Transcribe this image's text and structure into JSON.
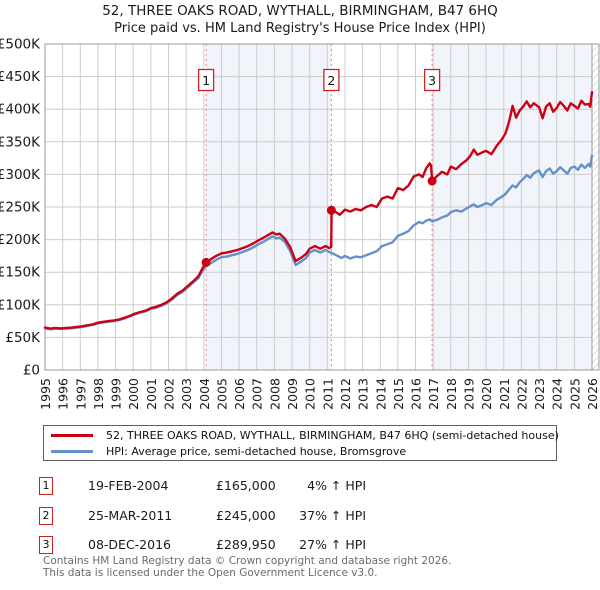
{
  "header": {
    "title": "52, THREE OAKS ROAD, WYTHALL, BIRMINGHAM, B47 6HQ",
    "subtitle": "Price paid vs. HM Land Registry's House Price Index (HPI)"
  },
  "colors": {
    "property_line": "#cc0011",
    "hpi_line": "#6491c8",
    "shade": "#f1f4fb",
    "grid": "#cccccc",
    "plot_border": "#999999",
    "sale_dashed": "#ef8585",
    "marker_box_border": "#cc2222",
    "text": "#1a1a1a",
    "muted": "#6b6b6b"
  },
  "chart_data": {
    "type": "line",
    "title": "52, THREE OAKS ROAD, WYTHALL, BIRMINGHAM, B47 6HQ",
    "subtitle": "Price paid vs. HM Land Registry's House Price Index (HPI)",
    "x_axis": {
      "min": 1995,
      "max": 2026,
      "tick_years": [
        1995,
        1996,
        1997,
        1998,
        1999,
        2000,
        2001,
        2002,
        2003,
        2004,
        2005,
        2006,
        2007,
        2008,
        2009,
        2010,
        2011,
        2012,
        2013,
        2014,
        2015,
        2016,
        2017,
        2018,
        2019,
        2020,
        2021,
        2022,
        2023,
        2024,
        2025,
        2026
      ]
    },
    "y_axis": {
      "min": 0,
      "max": 500,
      "unit": "GBP thousands",
      "tick_values": [
        0,
        50,
        100,
        150,
        200,
        250,
        300,
        350,
        400,
        450,
        500
      ],
      "tick_labels": [
        "£0",
        "£50K",
        "£100K",
        "£150K",
        "£200K",
        "£250K",
        "£300K",
        "£350K",
        "£400K",
        "£450K",
        "£500K"
      ]
    },
    "grid": true,
    "legend_position": "below",
    "shaded_regions": [
      [
        2004.13,
        2011.23
      ],
      [
        2016.94,
        2026
      ]
    ],
    "future_hatch": true,
    "series": [
      {
        "name": "52, THREE OAKS ROAD, WYTHALL, BIRMINGHAM, B47 6HQ (semi-detached house)",
        "color": "#cc0011",
        "points": [
          [
            1995.0,
            65
          ],
          [
            1995.3,
            63.5
          ],
          [
            1995.6,
            64.5
          ],
          [
            1995.9,
            63.8
          ],
          [
            1996.2,
            64.5
          ],
          [
            1996.5,
            65
          ],
          [
            1996.8,
            66
          ],
          [
            1997.1,
            67
          ],
          [
            1997.4,
            68.5
          ],
          [
            1997.7,
            70
          ],
          [
            1998.0,
            72.5
          ],
          [
            1998.3,
            74
          ],
          [
            1998.6,
            75
          ],
          [
            1998.9,
            76
          ],
          [
            1999.2,
            77.5
          ],
          [
            1999.5,
            80
          ],
          [
            1999.8,
            83
          ],
          [
            2000.1,
            86.5
          ],
          [
            2000.4,
            89
          ],
          [
            2000.7,
            91
          ],
          [
            2001.0,
            95
          ],
          [
            2001.3,
            97
          ],
          [
            2001.6,
            100
          ],
          [
            2001.9,
            104
          ],
          [
            2002.2,
            110
          ],
          [
            2002.5,
            117
          ],
          [
            2002.8,
            122
          ],
          [
            2003.1,
            129
          ],
          [
            2003.4,
            136
          ],
          [
            2003.7,
            144
          ],
          [
            2003.95,
            157
          ],
          [
            2004.13,
            165
          ],
          [
            2004.4,
            170
          ],
          [
            2004.7,
            175
          ],
          [
            2005.0,
            179
          ],
          [
            2005.3,
            180
          ],
          [
            2005.6,
            182
          ],
          [
            2005.9,
            184
          ],
          [
            2006.2,
            187
          ],
          [
            2006.5,
            190
          ],
          [
            2006.8,
            194
          ],
          [
            2007.1,
            199
          ],
          [
            2007.4,
            203
          ],
          [
            2007.7,
            208
          ],
          [
            2007.9,
            211
          ],
          [
            2008.1,
            208
          ],
          [
            2008.3,
            209
          ],
          [
            2008.6,
            201
          ],
          [
            2008.9,
            188
          ],
          [
            2009.2,
            167
          ],
          [
            2009.5,
            172
          ],
          [
            2009.8,
            178
          ],
          [
            2010.0,
            186
          ],
          [
            2010.3,
            190
          ],
          [
            2010.6,
            186
          ],
          [
            2010.9,
            190
          ],
          [
            2011.1,
            187
          ],
          [
            2011.22,
            189
          ],
          [
            2011.24,
            245
          ],
          [
            2011.5,
            242
          ],
          [
            2011.7,
            238
          ],
          [
            2012.0,
            246
          ],
          [
            2012.3,
            243
          ],
          [
            2012.6,
            247
          ],
          [
            2012.9,
            245
          ],
          [
            2013.2,
            250
          ],
          [
            2013.5,
            253
          ],
          [
            2013.8,
            250
          ],
          [
            2014.1,
            263
          ],
          [
            2014.4,
            266
          ],
          [
            2014.7,
            263
          ],
          [
            2015.0,
            279
          ],
          [
            2015.3,
            276
          ],
          [
            2015.6,
            283
          ],
          [
            2015.9,
            297
          ],
          [
            2016.2,
            300
          ],
          [
            2016.4,
            296
          ],
          [
            2016.6,
            309
          ],
          [
            2016.8,
            317
          ],
          [
            2016.88,
            313
          ],
          [
            2016.94,
            290
          ],
          [
            2017.2,
            297
          ],
          [
            2017.5,
            304
          ],
          [
            2017.8,
            300
          ],
          [
            2018.0,
            312
          ],
          [
            2018.3,
            308
          ],
          [
            2018.6,
            316
          ],
          [
            2018.9,
            322
          ],
          [
            2019.1,
            328
          ],
          [
            2019.3,
            338
          ],
          [
            2019.5,
            330
          ],
          [
            2019.8,
            334
          ],
          [
            2020.0,
            336
          ],
          [
            2020.3,
            331
          ],
          [
            2020.6,
            344
          ],
          [
            2020.9,
            354
          ],
          [
            2021.1,
            363
          ],
          [
            2021.3,
            381
          ],
          [
            2021.5,
            405
          ],
          [
            2021.7,
            387
          ],
          [
            2021.9,
            398
          ],
          [
            2022.1,
            404
          ],
          [
            2022.3,
            412
          ],
          [
            2022.5,
            403
          ],
          [
            2022.7,
            409
          ],
          [
            2023.0,
            403
          ],
          [
            2023.2,
            386
          ],
          [
            2023.4,
            404
          ],
          [
            2023.6,
            409
          ],
          [
            2023.8,
            396
          ],
          [
            2024.0,
            402
          ],
          [
            2024.2,
            411
          ],
          [
            2024.4,
            405
          ],
          [
            2024.6,
            398
          ],
          [
            2024.8,
            409
          ],
          [
            2025.0,
            405
          ],
          [
            2025.2,
            401
          ],
          [
            2025.4,
            413
          ],
          [
            2025.6,
            407
          ],
          [
            2025.8,
            408
          ],
          [
            2025.9,
            404
          ],
          [
            2026.0,
            426
          ]
        ]
      },
      {
        "name": "HPI: Average price, semi-detached house, Bromsgrove",
        "color": "#6491c8",
        "points": [
          [
            1995.0,
            64
          ],
          [
            1995.3,
            62.5
          ],
          [
            1995.6,
            63.5
          ],
          [
            1995.9,
            63
          ],
          [
            1996.2,
            63.5
          ],
          [
            1996.5,
            64
          ],
          [
            1996.8,
            65
          ],
          [
            1997.1,
            66
          ],
          [
            1997.4,
            67.5
          ],
          [
            1997.7,
            69
          ],
          [
            1998.0,
            71.5
          ],
          [
            1998.3,
            73
          ],
          [
            1998.6,
            74
          ],
          [
            1998.9,
            75
          ],
          [
            1999.2,
            76.5
          ],
          [
            1999.5,
            79
          ],
          [
            1999.8,
            82
          ],
          [
            2000.1,
            85.5
          ],
          [
            2000.4,
            88
          ],
          [
            2000.7,
            90
          ],
          [
            2001.0,
            93.5
          ],
          [
            2001.3,
            95.5
          ],
          [
            2001.6,
            98.5
          ],
          [
            2001.9,
            102.5
          ],
          [
            2002.2,
            108
          ],
          [
            2002.5,
            115
          ],
          [
            2002.8,
            120
          ],
          [
            2003.1,
            127
          ],
          [
            2003.4,
            134
          ],
          [
            2003.7,
            141
          ],
          [
            2003.95,
            153
          ],
          [
            2004.13,
            159
          ],
          [
            2004.4,
            164
          ],
          [
            2004.7,
            169
          ],
          [
            2005.0,
            173
          ],
          [
            2005.3,
            174
          ],
          [
            2005.6,
            176
          ],
          [
            2005.9,
            178
          ],
          [
            2006.2,
            181
          ],
          [
            2006.5,
            184
          ],
          [
            2006.8,
            188
          ],
          [
            2007.1,
            193
          ],
          [
            2007.4,
            197
          ],
          [
            2007.7,
            202
          ],
          [
            2007.9,
            205
          ],
          [
            2008.1,
            202
          ],
          [
            2008.3,
            203
          ],
          [
            2008.6,
            196
          ],
          [
            2008.9,
            182
          ],
          [
            2009.2,
            161
          ],
          [
            2009.5,
            166
          ],
          [
            2009.8,
            172
          ],
          [
            2010.0,
            180
          ],
          [
            2010.3,
            184
          ],
          [
            2010.6,
            180
          ],
          [
            2010.9,
            184
          ],
          [
            2011.1,
            181
          ],
          [
            2011.3,
            179
          ],
          [
            2011.5,
            176
          ],
          [
            2011.8,
            172
          ],
          [
            2012.0,
            175
          ],
          [
            2012.3,
            171
          ],
          [
            2012.6,
            174
          ],
          [
            2012.9,
            173
          ],
          [
            2013.2,
            176
          ],
          [
            2013.5,
            179
          ],
          [
            2013.8,
            182
          ],
          [
            2014.1,
            190
          ],
          [
            2014.4,
            193
          ],
          [
            2014.7,
            196
          ],
          [
            2015.0,
            206
          ],
          [
            2015.3,
            209
          ],
          [
            2015.6,
            213
          ],
          [
            2015.9,
            222
          ],
          [
            2016.2,
            227
          ],
          [
            2016.4,
            225
          ],
          [
            2016.6,
            229
          ],
          [
            2016.8,
            231
          ],
          [
            2016.94,
            228
          ],
          [
            2017.2,
            230
          ],
          [
            2017.5,
            234
          ],
          [
            2017.8,
            237
          ],
          [
            2018.0,
            242
          ],
          [
            2018.3,
            245
          ],
          [
            2018.6,
            243
          ],
          [
            2018.9,
            248
          ],
          [
            2019.1,
            251
          ],
          [
            2019.3,
            254
          ],
          [
            2019.5,
            250
          ],
          [
            2019.8,
            253
          ],
          [
            2020.0,
            256
          ],
          [
            2020.3,
            253
          ],
          [
            2020.6,
            261
          ],
          [
            2020.9,
            266
          ],
          [
            2021.1,
            270
          ],
          [
            2021.3,
            277
          ],
          [
            2021.5,
            283
          ],
          [
            2021.7,
            280
          ],
          [
            2021.9,
            288
          ],
          [
            2022.1,
            293
          ],
          [
            2022.3,
            299
          ],
          [
            2022.5,
            295
          ],
          [
            2022.7,
            302
          ],
          [
            2023.0,
            306
          ],
          [
            2023.2,
            296
          ],
          [
            2023.4,
            305
          ],
          [
            2023.6,
            309
          ],
          [
            2023.8,
            301
          ],
          [
            2024.0,
            305
          ],
          [
            2024.2,
            311
          ],
          [
            2024.4,
            306
          ],
          [
            2024.6,
            301
          ],
          [
            2024.8,
            310
          ],
          [
            2025.0,
            312
          ],
          [
            2025.2,
            307
          ],
          [
            2025.4,
            315
          ],
          [
            2025.6,
            310
          ],
          [
            2025.8,
            316
          ],
          [
            2025.9,
            312
          ],
          [
            2026.0,
            329
          ]
        ]
      }
    ],
    "sales": [
      {
        "num": "1",
        "date": "19-FEB-2004",
        "year": 2004.13,
        "price_gbp": 165000,
        "price_label": "£165,000",
        "vs_hpi": "4% ↑ HPI"
      },
      {
        "num": "2",
        "date": "25-MAR-2011",
        "year": 2011.23,
        "price_gbp": 245000,
        "price_label": "£245,000",
        "vs_hpi": "37% ↑ HPI"
      },
      {
        "num": "3",
        "date": "08-DEC-2016",
        "year": 2016.94,
        "price_gbp": 289950,
        "price_label": "£289,950",
        "vs_hpi": "27% ↑ HPI"
      }
    ]
  },
  "footer": {
    "line1": "Contains HM Land Registry data © Crown copyright and database right 2026.",
    "line2": "This data is licensed under the Open Government Licence v3.0."
  }
}
